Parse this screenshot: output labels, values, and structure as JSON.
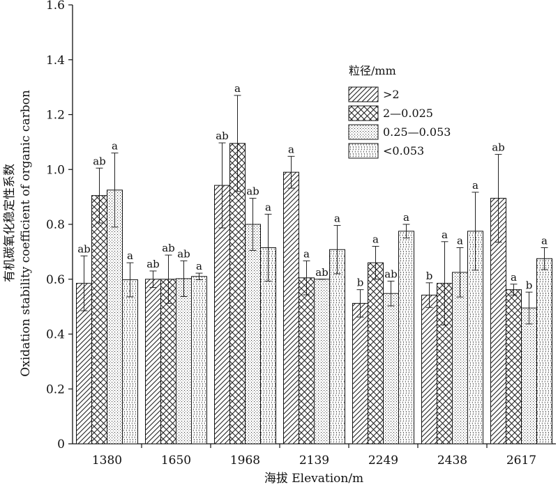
{
  "chart_data": {
    "type": "bar",
    "title": "",
    "xlabel": "海拔 Elevation/m",
    "ylabel_cn": "有机碳氧化稳定性系数",
    "ylabel_en": "Oxidation stability coefficient of organic carbon",
    "ylim": [
      0,
      1.6
    ],
    "yticks": [
      "0",
      "0.2",
      "0.4",
      "0.6",
      "0.8",
      "1.0",
      "1.2",
      "1.4",
      "1.6"
    ],
    "categories": [
      "1380",
      "1650",
      "1968",
      "2139",
      "2249",
      "2438",
      "2617"
    ],
    "legend_title": "粒径/mm",
    "legend_position": "top-right",
    "series": [
      {
        "name": ">2",
        "pattern": "diagonal",
        "values": [
          0.585,
          0.6,
          0.942,
          0.99,
          0.512,
          0.542,
          0.895
        ],
        "errors": [
          0.1,
          0.03,
          0.155,
          0.058,
          0.05,
          0.045,
          0.16
        ],
        "letters": [
          "ab",
          "ab",
          "ab",
          "a",
          "b",
          "b",
          "ab"
        ]
      },
      {
        "name": "2—0.025",
        "pattern": "crosshatch",
        "values": [
          0.905,
          0.6,
          1.095,
          0.605,
          0.66,
          0.585,
          0.562
        ],
        "errors": [
          0.1,
          0.088,
          0.175,
          0.062,
          0.06,
          0.152,
          0.02
        ],
        "letters": [
          "ab",
          "ab",
          "a",
          "a",
          "a",
          "a",
          "a"
        ]
      },
      {
        "name": "0.25—0.053",
        "pattern": "dotgrid",
        "values": [
          0.925,
          0.602,
          0.8,
          0.6,
          0.548,
          0.625,
          0.495
        ],
        "errors": [
          0.135,
          0.065,
          0.095,
          0.0,
          0.045,
          0.09,
          0.058
        ],
        "letters": [
          "a",
          "ab",
          "ab",
          "ab",
          "ab",
          "a",
          "b"
        ]
      },
      {
        "name": "<0.053",
        "pattern": "wave",
        "values": [
          0.598,
          0.61,
          0.715,
          0.708,
          0.775,
          0.775,
          0.675
        ],
        "errors": [
          0.062,
          0.012,
          0.122,
          0.088,
          0.025,
          0.142,
          0.04
        ],
        "letters": [
          "a",
          "a",
          "a",
          "a",
          "a",
          "a",
          "a"
        ]
      }
    ]
  }
}
